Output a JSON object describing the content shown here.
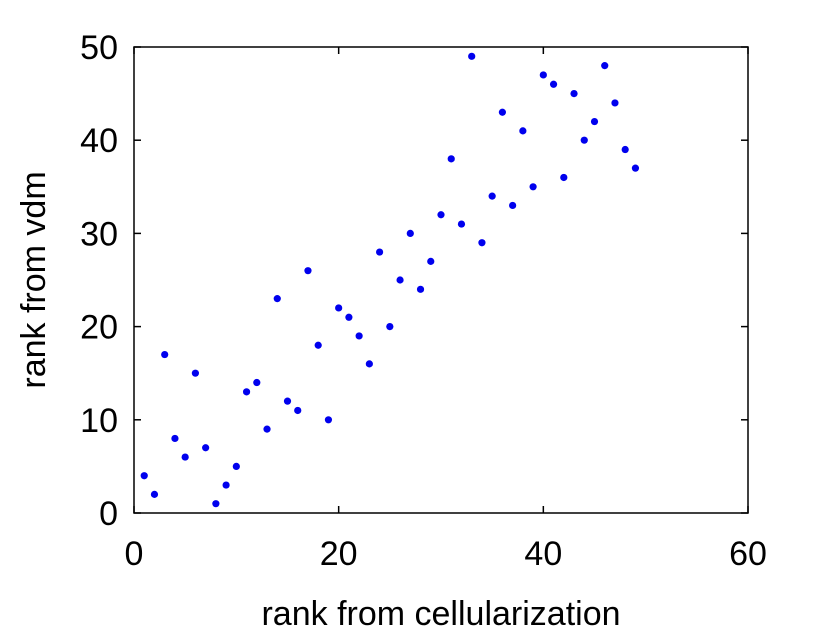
{
  "chart_data": {
    "type": "scatter",
    "title": "",
    "xlabel": "rank from cellularization",
    "ylabel": "rank from vdm",
    "xlim": [
      0,
      60
    ],
    "ylim": [
      0,
      50
    ],
    "x_ticks": [
      0,
      20,
      40,
      60
    ],
    "y_ticks": [
      0,
      10,
      20,
      30,
      40,
      50
    ],
    "grid": false,
    "marker_color": "#0000ee",
    "series": [
      {
        "x": [
          1,
          2,
          3,
          4,
          5,
          6,
          7,
          8,
          9,
          10,
          11,
          12,
          13,
          14,
          15,
          16,
          17,
          18,
          19,
          20,
          21,
          22,
          23,
          24,
          25,
          26,
          27,
          28,
          29,
          30,
          31,
          32,
          33,
          34,
          35,
          36,
          37,
          38,
          39,
          40,
          41,
          42,
          43,
          44,
          45,
          46,
          47,
          48,
          49
        ],
        "y": [
          4,
          2,
          17,
          8,
          6,
          15,
          7,
          1,
          3,
          5,
          13,
          14,
          9,
          23,
          12,
          11,
          26,
          18,
          10,
          22,
          21,
          19,
          16,
          28,
          20,
          25,
          30,
          24,
          27,
          32,
          38,
          31,
          49,
          29,
          34,
          43,
          33,
          41,
          35,
          47,
          46,
          36,
          45,
          40,
          42,
          48,
          44,
          39,
          37
        ]
      }
    ]
  }
}
